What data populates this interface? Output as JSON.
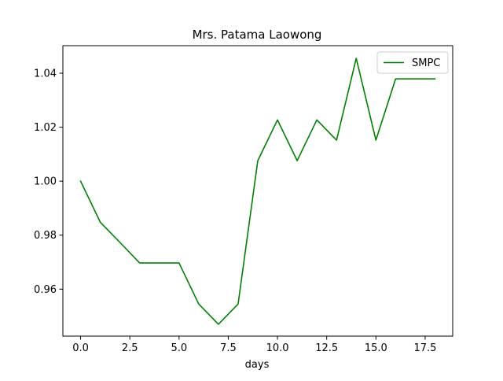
{
  "chart_data": {
    "type": "line",
    "title": "Mrs. Patama Laowong",
    "xlabel": "days",
    "ylabel": "",
    "xlim": [
      -0.9,
      18.9
    ],
    "ylim": [
      0.9426,
      1.0502
    ],
    "xticks": [
      0.0,
      2.5,
      5.0,
      7.5,
      10.0,
      12.5,
      15.0,
      17.5
    ],
    "xtick_labels": [
      "0.0",
      "2.5",
      "5.0",
      "7.5",
      "10.0",
      "12.5",
      "15.0",
      "17.5"
    ],
    "yticks": [
      0.96,
      0.98,
      1.0,
      1.02,
      1.04
    ],
    "ytick_labels": [
      "0.96",
      "0.98",
      "1.00",
      "1.02",
      "1.04"
    ],
    "grid": false,
    "legend_position": "top-right",
    "series": [
      {
        "name": "SMPC",
        "color": "#008000",
        "x": [
          0,
          1,
          2,
          3,
          4,
          5,
          6,
          7,
          8,
          9,
          10,
          11,
          12,
          13,
          14,
          15,
          16,
          17,
          18
        ],
        "y": [
          1.0,
          0.9848,
          0.9773,
          0.9697,
          0.9697,
          0.9697,
          0.9545,
          0.947,
          0.9545,
          1.0076,
          1.0227,
          1.0076,
          1.0227,
          1.0152,
          1.0455,
          1.0152,
          1.0379,
          1.0379,
          1.0379
        ]
      }
    ]
  }
}
